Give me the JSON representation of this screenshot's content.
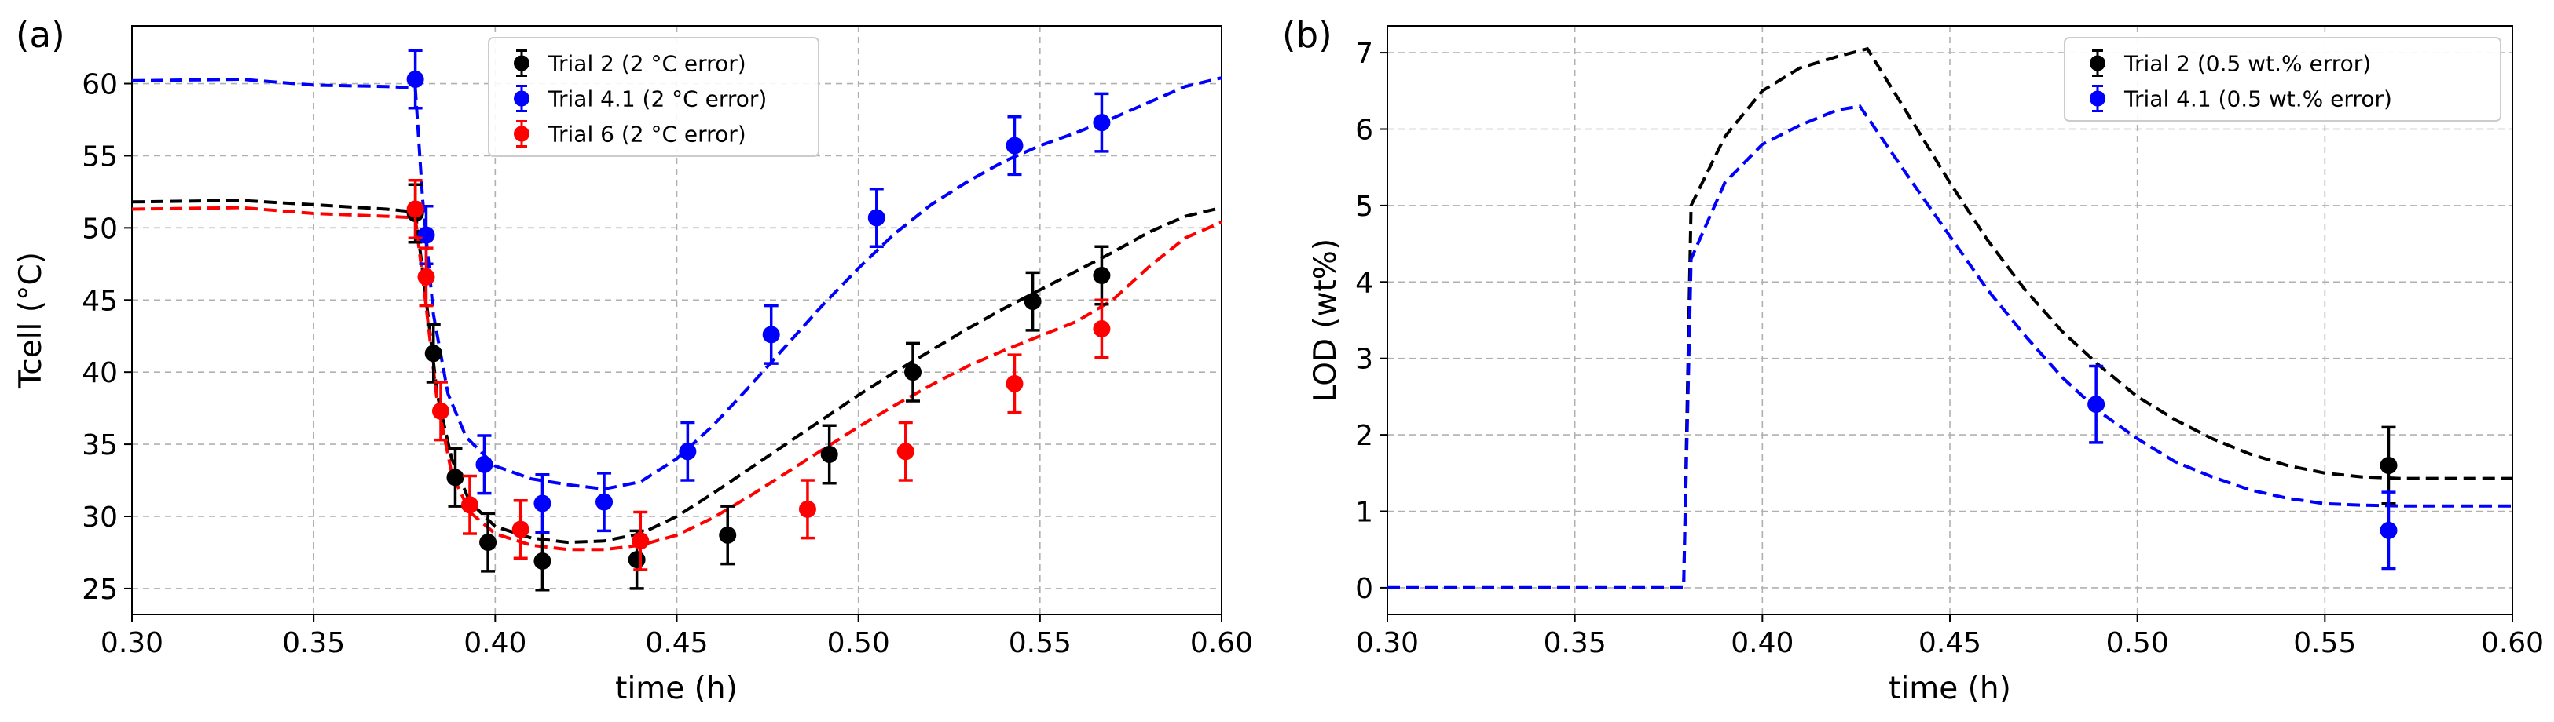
{
  "chart_data": [
    {
      "panel_label": "(a)",
      "type": "scatter",
      "xlabel": "time (h)",
      "ylabel": "Tcell (°C)",
      "xlim": [
        0.3,
        0.6
      ],
      "ylim": [
        23.2,
        64.0
      ],
      "xticks": [
        0.3,
        0.35,
        0.4,
        0.45,
        0.5,
        0.55,
        0.6
      ],
      "xtick_labels": [
        "0.30",
        "0.35",
        "0.40",
        "0.45",
        "0.50",
        "0.55",
        "0.60"
      ],
      "yticks": [
        25,
        30,
        35,
        40,
        45,
        50,
        55,
        60
      ],
      "ytick_labels": [
        "25",
        "30",
        "35",
        "40",
        "45",
        "50",
        "55",
        "60"
      ],
      "grid": true,
      "legend_position": "top-center",
      "series": [
        {
          "name": "Trial 2 (2 °C error)",
          "color": "#000000",
          "error": 2,
          "points": [
            [
              0.378,
              51.0
            ],
            [
              0.383,
              41.3
            ],
            [
              0.389,
              32.7
            ],
            [
              0.398,
              28.2
            ],
            [
              0.413,
              26.9
            ],
            [
              0.439,
              27.0
            ],
            [
              0.464,
              28.7
            ],
            [
              0.492,
              34.3
            ],
            [
              0.515,
              40.0
            ],
            [
              0.548,
              44.9
            ],
            [
              0.567,
              46.7
            ]
          ],
          "model": [
            [
              0.3,
              51.8
            ],
            [
              0.33,
              51.9
            ],
            [
              0.35,
              51.6
            ],
            [
              0.37,
              51.3
            ],
            [
              0.378,
              51.1
            ],
            [
              0.381,
              45.0
            ],
            [
              0.384,
              38.5
            ],
            [
              0.388,
              34.0
            ],
            [
              0.393,
              31.0
            ],
            [
              0.4,
              29.3
            ],
            [
              0.41,
              28.5
            ],
            [
              0.42,
              28.2
            ],
            [
              0.43,
              28.3
            ],
            [
              0.44,
              28.8
            ],
            [
              0.45,
              30.0
            ],
            [
              0.46,
              31.6
            ],
            [
              0.47,
              33.3
            ],
            [
              0.48,
              35.0
            ],
            [
              0.49,
              36.7
            ],
            [
              0.5,
              38.4
            ],
            [
              0.51,
              40.0
            ],
            [
              0.52,
              41.5
            ],
            [
              0.53,
              43.0
            ],
            [
              0.54,
              44.4
            ],
            [
              0.55,
              45.7
            ],
            [
              0.56,
              47.0
            ],
            [
              0.57,
              48.3
            ],
            [
              0.58,
              49.7
            ],
            [
              0.59,
              50.8
            ],
            [
              0.6,
              51.4
            ]
          ]
        },
        {
          "name": "Trial 4.1 (2 °C error)",
          "color": "#0000ff",
          "error": 2,
          "points": [
            [
              0.378,
              60.3
            ],
            [
              0.381,
              49.5
            ],
            [
              0.397,
              33.6
            ],
            [
              0.413,
              30.9
            ],
            [
              0.43,
              31.0
            ],
            [
              0.453,
              34.5
            ],
            [
              0.476,
              42.6
            ],
            [
              0.505,
              50.7
            ],
            [
              0.543,
              55.7
            ],
            [
              0.567,
              57.3
            ]
          ],
          "model": [
            [
              0.3,
              60.2
            ],
            [
              0.33,
              60.3
            ],
            [
              0.35,
              59.9
            ],
            [
              0.37,
              59.8
            ],
            [
              0.378,
              59.7
            ],
            [
              0.38,
              52.0
            ],
            [
              0.383,
              44.0
            ],
            [
              0.387,
              38.5
            ],
            [
              0.392,
              35.5
            ],
            [
              0.4,
              33.5
            ],
            [
              0.41,
              32.6
            ],
            [
              0.42,
              32.2
            ],
            [
              0.43,
              31.9
            ],
            [
              0.44,
              32.4
            ],
            [
              0.45,
              34.0
            ],
            [
              0.46,
              36.3
            ],
            [
              0.47,
              39.0
            ],
            [
              0.48,
              41.8
            ],
            [
              0.49,
              44.6
            ],
            [
              0.5,
              47.2
            ],
            [
              0.51,
              49.6
            ],
            [
              0.52,
              51.6
            ],
            [
              0.53,
              53.2
            ],
            [
              0.54,
              54.6
            ],
            [
              0.55,
              55.7
            ],
            [
              0.56,
              56.6
            ],
            [
              0.57,
              57.6
            ],
            [
              0.58,
              58.7
            ],
            [
              0.59,
              59.8
            ],
            [
              0.6,
              60.4
            ]
          ]
        },
        {
          "name": "Trial 6 (2 °C error)",
          "color": "#ff0000",
          "error": 2,
          "points": [
            [
              0.378,
              51.3
            ],
            [
              0.381,
              46.6
            ],
            [
              0.385,
              37.3
            ],
            [
              0.393,
              30.8
            ],
            [
              0.407,
              29.1
            ],
            [
              0.44,
              28.3
            ],
            [
              0.486,
              30.5
            ],
            [
              0.513,
              34.5
            ],
            [
              0.543,
              39.2
            ],
            [
              0.567,
              43.0
            ]
          ],
          "model": [
            [
              0.3,
              51.3
            ],
            [
              0.33,
              51.4
            ],
            [
              0.35,
              51.0
            ],
            [
              0.37,
              50.8
            ],
            [
              0.378,
              50.7
            ],
            [
              0.381,
              44.5
            ],
            [
              0.384,
              38.0
            ],
            [
              0.388,
              33.0
            ],
            [
              0.393,
              30.3
            ],
            [
              0.4,
              28.8
            ],
            [
              0.41,
              28.0
            ],
            [
              0.42,
              27.7
            ],
            [
              0.43,
              27.7
            ],
            [
              0.44,
              28.0
            ],
            [
              0.45,
              28.7
            ],
            [
              0.46,
              29.9
            ],
            [
              0.47,
              31.4
            ],
            [
              0.48,
              33.0
            ],
            [
              0.49,
              34.6
            ],
            [
              0.5,
              36.2
            ],
            [
              0.51,
              37.7
            ],
            [
              0.52,
              39.1
            ],
            [
              0.53,
              40.4
            ],
            [
              0.54,
              41.5
            ],
            [
              0.55,
              42.5
            ],
            [
              0.56,
              43.5
            ],
            [
              0.57,
              45.0
            ],
            [
              0.58,
              47.3
            ],
            [
              0.59,
              49.3
            ],
            [
              0.6,
              50.4
            ]
          ]
        }
      ]
    },
    {
      "panel_label": "(b)",
      "type": "scatter",
      "xlabel": "time (h)",
      "ylabel": "LOD (wt%)",
      "xlim": [
        0.3,
        0.6
      ],
      "ylim": [
        -0.35,
        7.35
      ],
      "xticks": [
        0.3,
        0.35,
        0.4,
        0.45,
        0.5,
        0.55,
        0.6
      ],
      "xtick_labels": [
        "0.30",
        "0.35",
        "0.40",
        "0.45",
        "0.50",
        "0.55",
        "0.60"
      ],
      "yticks": [
        0,
        1,
        2,
        3,
        4,
        5,
        6,
        7
      ],
      "ytick_labels": [
        "0",
        "1",
        "2",
        "3",
        "4",
        "5",
        "6",
        "7"
      ],
      "grid": true,
      "legend_position": "top-right",
      "series": [
        {
          "name": "Trial 2  (0.5 wt.% error)",
          "color": "#000000",
          "error": 0.5,
          "points": [
            [
              0.567,
              1.6
            ]
          ],
          "model": [
            [
              0.3,
              0.0
            ],
            [
              0.379,
              0.0
            ],
            [
              0.381,
              5.0
            ],
            [
              0.39,
              5.9
            ],
            [
              0.4,
              6.5
            ],
            [
              0.41,
              6.8
            ],
            [
              0.42,
              6.95
            ],
            [
              0.428,
              7.05
            ],
            [
              0.44,
              6.1
            ],
            [
              0.45,
              5.3
            ],
            [
              0.46,
              4.55
            ],
            [
              0.47,
              3.9
            ],
            [
              0.48,
              3.35
            ],
            [
              0.49,
              2.9
            ],
            [
              0.5,
              2.5
            ],
            [
              0.51,
              2.2
            ],
            [
              0.52,
              1.95
            ],
            [
              0.53,
              1.75
            ],
            [
              0.54,
              1.6
            ],
            [
              0.55,
              1.5
            ],
            [
              0.56,
              1.45
            ],
            [
              0.57,
              1.43
            ],
            [
              0.6,
              1.43
            ]
          ]
        },
        {
          "name": "Trial 4.1 (0.5 wt.% error)",
          "color": "#0000ff",
          "error": 0.5,
          "points": [
            [
              0.489,
              2.4
            ],
            [
              0.567,
              0.75
            ]
          ],
          "model": [
            [
              0.3,
              0.0
            ],
            [
              0.379,
              0.0
            ],
            [
              0.381,
              4.3
            ],
            [
              0.39,
              5.3
            ],
            [
              0.4,
              5.8
            ],
            [
              0.41,
              6.05
            ],
            [
              0.42,
              6.25
            ],
            [
              0.426,
              6.3
            ],
            [
              0.44,
              5.3
            ],
            [
              0.45,
              4.6
            ],
            [
              0.46,
              3.9
            ],
            [
              0.47,
              3.3
            ],
            [
              0.48,
              2.75
            ],
            [
              0.49,
              2.3
            ],
            [
              0.5,
              1.95
            ],
            [
              0.51,
              1.65
            ],
            [
              0.52,
              1.45
            ],
            [
              0.53,
              1.28
            ],
            [
              0.54,
              1.17
            ],
            [
              0.55,
              1.1
            ],
            [
              0.56,
              1.08
            ],
            [
              0.57,
              1.07
            ],
            [
              0.6,
              1.07
            ]
          ]
        }
      ]
    }
  ]
}
